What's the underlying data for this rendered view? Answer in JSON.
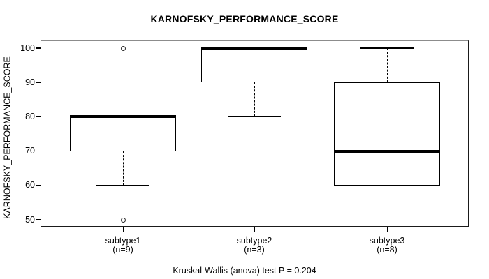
{
  "chart_data": {
    "type": "box",
    "title": "KARNOFSKY_PERFORMANCE_SCORE",
    "xlabel": "",
    "ylabel": "KARNOFSKY_PERFORMANCE_SCORE",
    "ylim": [
      48,
      102
    ],
    "yticks": [
      50,
      60,
      70,
      80,
      90,
      100
    ],
    "grid": false,
    "legend": "none",
    "footnote": "Kruskal-Wallis (anova) test P = 0.204",
    "stat_test": {
      "name": "Kruskal-Wallis (anova) test",
      "p_value": 0.204
    },
    "groups": [
      {
        "label": "subtype1",
        "sublabel": "(n=9)",
        "n": 9,
        "q1": 70,
        "median": 80,
        "q3": 80,
        "whisker_low": 60,
        "whisker_high": 80,
        "outliers": [
          100,
          50
        ]
      },
      {
        "label": "subtype2",
        "sublabel": "(n=3)",
        "n": 3,
        "q1": 90,
        "median": 100,
        "q3": 100,
        "whisker_low": 80,
        "whisker_high": 100,
        "outliers": []
      },
      {
        "label": "subtype3",
        "sublabel": "(n=8)",
        "n": 8,
        "q1": 60,
        "median": 70,
        "q3": 90,
        "whisker_low": 60,
        "whisker_high": 100,
        "outliers": []
      }
    ]
  }
}
